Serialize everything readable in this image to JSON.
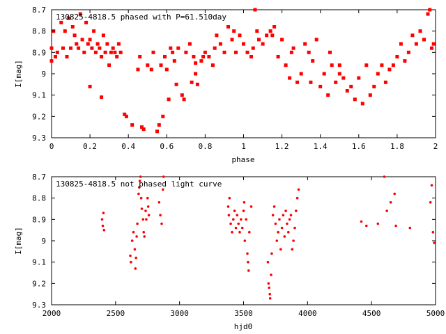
{
  "colors": {
    "points": "#ff0000",
    "axes": "#000000",
    "background": "#ffffff"
  },
  "chart_data": [
    {
      "type": "scatter",
      "title": "130825-4818.5 phased with P=61.510day",
      "xlabel": "phase",
      "ylabel": "I[mag]",
      "xlim": [
        0,
        2
      ],
      "ylim": [
        8.7,
        9.3
      ],
      "y_inverted": true,
      "x_ticks": [
        0,
        0.2,
        0.4,
        0.6,
        0.8,
        1,
        1.2,
        1.4,
        1.6,
        1.8,
        2
      ],
      "x_tick_labels": [
        "0",
        "0.2",
        "0.4",
        "0.6",
        "0.8",
        "1",
        "1.2",
        "1.4",
        "1.6",
        "1.8",
        "2"
      ],
      "y_ticks": [
        8.7,
        8.8,
        8.9,
        9,
        9.1,
        9.2,
        9.3
      ],
      "y_tick_labels": [
        "8.7",
        "8.8",
        "8.9",
        "9",
        "9.1",
        "9.2",
        "9.3"
      ],
      "marker": "filled-square",
      "grid": false,
      "points": [
        [
          0.0,
          8.88
        ],
        [
          0.0,
          8.94
        ],
        [
          0.01,
          8.8
        ],
        [
          0.02,
          8.92
        ],
        [
          0.03,
          8.9
        ],
        [
          0.05,
          8.76
        ],
        [
          0.06,
          8.88
        ],
        [
          0.07,
          8.8
        ],
        [
          0.08,
          8.92
        ],
        [
          0.09,
          8.74
        ],
        [
          0.1,
          8.88
        ],
        [
          0.11,
          8.78
        ],
        [
          0.12,
          8.82
        ],
        [
          0.13,
          8.86
        ],
        [
          0.14,
          8.88
        ],
        [
          0.15,
          8.72
        ],
        [
          0.16,
          8.84
        ],
        [
          0.17,
          8.9
        ],
        [
          0.18,
          8.76
        ],
        [
          0.19,
          8.86
        ],
        [
          0.2,
          8.84
        ],
        [
          0.21,
          8.88
        ],
        [
          0.22,
          8.8
        ],
        [
          0.23,
          8.9
        ],
        [
          0.24,
          8.86
        ],
        [
          0.25,
          8.88
        ],
        [
          0.26,
          8.92
        ],
        [
          0.27,
          8.82
        ],
        [
          0.28,
          8.9
        ],
        [
          0.29,
          8.86
        ],
        [
          0.3,
          8.96
        ],
        [
          0.31,
          8.9
        ],
        [
          0.32,
          8.88
        ],
        [
          0.33,
          8.9
        ],
        [
          0.34,
          8.92
        ],
        [
          0.35,
          8.86
        ],
        [
          0.36,
          8.9
        ],
        [
          0.2,
          9.06
        ],
        [
          0.26,
          9.11
        ],
        [
          0.38,
          9.19
        ],
        [
          0.39,
          9.2
        ],
        [
          0.42,
          9.24
        ],
        [
          0.47,
          9.25
        ],
        [
          0.48,
          9.26
        ],
        [
          0.45,
          8.98
        ],
        [
          0.46,
          8.92
        ],
        [
          0.5,
          8.96
        ],
        [
          0.52,
          8.98
        ],
        [
          0.53,
          8.9
        ],
        [
          0.55,
          9.27
        ],
        [
          0.56,
          9.24
        ],
        [
          0.58,
          9.2
        ],
        [
          0.57,
          8.96
        ],
        [
          0.59,
          8.92
        ],
        [
          0.6,
          8.98
        ],
        [
          0.61,
          9.12
        ],
        [
          0.62,
          8.88
        ],
        [
          0.63,
          8.9
        ],
        [
          0.64,
          8.94
        ],
        [
          0.65,
          9.05
        ],
        [
          0.66,
          8.88
        ],
        [
          0.68,
          9.1
        ],
        [
          0.69,
          9.12
        ],
        [
          0.7,
          8.9
        ],
        [
          0.72,
          8.86
        ],
        [
          0.73,
          9.04
        ],
        [
          0.74,
          8.92
        ],
        [
          0.75,
          9.0
        ],
        [
          0.76,
          9.05
        ],
        [
          0.78,
          8.94
        ],
        [
          0.79,
          8.92
        ],
        [
          0.8,
          8.9
        ],
        [
          0.82,
          8.92
        ],
        [
          0.84,
          8.96
        ],
        [
          0.86,
          8.82
        ],
        [
          0.88,
          8.86
        ],
        [
          0.9,
          8.9
        ],
        [
          0.92,
          8.78
        ],
        [
          0.94,
          8.84
        ],
        [
          0.96,
          8.9
        ],
        [
          0.98,
          8.82
        ],
        [
          1.0,
          8.86
        ],
        [
          1.02,
          8.9
        ],
        [
          1.04,
          8.92
        ],
        [
          1.06,
          8.7
        ],
        [
          1.07,
          8.8
        ],
        [
          1.08,
          8.84
        ],
        [
          1.1,
          8.86
        ],
        [
          1.12,
          8.82
        ],
        [
          1.14,
          8.8
        ],
        [
          1.16,
          8.78
        ],
        [
          1.18,
          8.92
        ],
        [
          1.2,
          8.84
        ],
        [
          1.22,
          8.96
        ],
        [
          1.24,
          9.02
        ],
        [
          1.26,
          8.88
        ],
        [
          1.28,
          9.04
        ],
        [
          1.3,
          9.0
        ],
        [
          1.32,
          8.86
        ],
        [
          1.34,
          8.9
        ],
        [
          1.36,
          8.94
        ],
        [
          1.38,
          8.84
        ],
        [
          1.4,
          9.06
        ],
        [
          1.42,
          9.0
        ],
        [
          1.44,
          9.1
        ],
        [
          1.46,
          8.96
        ],
        [
          1.48,
          9.04
        ],
        [
          1.5,
          8.96
        ],
        [
          1.52,
          9.02
        ],
        [
          1.54,
          9.08
        ],
        [
          1.56,
          9.06
        ],
        [
          1.58,
          9.12
        ],
        [
          1.6,
          9.02
        ],
        [
          1.62,
          9.14
        ],
        [
          1.64,
          8.96
        ],
        [
          1.66,
          9.1
        ],
        [
          1.68,
          9.06
        ],
        [
          1.7,
          9.0
        ],
        [
          1.72,
          8.96
        ],
        [
          1.74,
          9.04
        ],
        [
          1.76,
          8.98
        ],
        [
          1.78,
          8.96
        ],
        [
          1.8,
          8.92
        ],
        [
          1.82,
          8.86
        ],
        [
          1.84,
          8.94
        ],
        [
          1.86,
          8.9
        ],
        [
          1.88,
          8.82
        ],
        [
          1.9,
          8.86
        ],
        [
          1.92,
          8.8
        ],
        [
          1.94,
          8.84
        ],
        [
          1.96,
          8.72
        ],
        [
          1.97,
          8.7
        ],
        [
          1.98,
          8.88
        ],
        [
          1.99,
          8.86
        ],
        [
          1.5,
          9.0
        ],
        [
          1.45,
          8.9
        ],
        [
          1.35,
          9.04
        ],
        [
          1.25,
          8.9
        ],
        [
          1.15,
          8.82
        ],
        [
          1.05,
          8.88
        ],
        [
          0.95,
          8.8
        ],
        [
          0.85,
          8.88
        ],
        [
          0.75,
          8.95
        ]
      ]
    },
    {
      "type": "scatter",
      "title": "130825-4818.5 not phased light curve",
      "xlabel": "hjd0",
      "ylabel": "I[mag]",
      "xlim": [
        2000,
        5000
      ],
      "ylim": [
        8.7,
        9.3
      ],
      "y_inverted": true,
      "x_ticks": [
        2000,
        2500,
        3000,
        3500,
        4000,
        4500,
        5000
      ],
      "x_tick_labels": [
        "2000",
        "2500",
        "3000",
        "3500",
        "4000",
        "4500",
        "5000"
      ],
      "y_ticks": [
        8.7,
        8.8,
        8.9,
        9,
        9.1,
        9.2,
        9.3
      ],
      "y_tick_labels": [
        "8.7",
        "8.8",
        "8.9",
        "9",
        "9.1",
        "9.2",
        "9.3"
      ],
      "marker": "small-dot",
      "grid": false,
      "points": [
        [
          2395,
          8.9
        ],
        [
          2400,
          8.93
        ],
        [
          2405,
          8.87
        ],
        [
          2410,
          8.95
        ],
        [
          2615,
          9.07
        ],
        [
          2620,
          9.1
        ],
        [
          2630,
          9.0
        ],
        [
          2640,
          8.96
        ],
        [
          2650,
          9.04
        ],
        [
          2655,
          9.13
        ],
        [
          2660,
          9.08
        ],
        [
          2665,
          8.98
        ],
        [
          2670,
          8.92
        ],
        [
          2680,
          8.78
        ],
        [
          2685,
          8.75
        ],
        [
          2690,
          8.72
        ],
        [
          2695,
          8.7
        ],
        [
          2700,
          8.8
        ],
        [
          2705,
          8.85
        ],
        [
          2715,
          8.9
        ],
        [
          2720,
          8.96
        ],
        [
          2725,
          8.98
        ],
        [
          2735,
          8.86
        ],
        [
          2740,
          8.9
        ],
        [
          2750,
          8.8
        ],
        [
          2755,
          8.84
        ],
        [
          2760,
          8.88
        ],
        [
          2840,
          8.82
        ],
        [
          2850,
          8.88
        ],
        [
          2860,
          8.92
        ],
        [
          2870,
          8.76
        ],
        [
          2875,
          8.7
        ],
        [
          3380,
          8.84
        ],
        [
          3385,
          8.88
        ],
        [
          3390,
          8.8
        ],
        [
          3400,
          8.92
        ],
        [
          3410,
          8.96
        ],
        [
          3420,
          8.9
        ],
        [
          3430,
          8.86
        ],
        [
          3440,
          8.94
        ],
        [
          3450,
          8.88
        ],
        [
          3460,
          8.92
        ],
        [
          3470,
          8.96
        ],
        [
          3480,
          8.9
        ],
        [
          3490,
          8.94
        ],
        [
          3500,
          8.86
        ],
        [
          3505,
          8.82
        ],
        [
          3510,
          9.0
        ],
        [
          3520,
          8.9
        ],
        [
          3530,
          9.06
        ],
        [
          3535,
          9.1
        ],
        [
          3540,
          9.14
        ],
        [
          3545,
          8.96
        ],
        [
          3560,
          8.84
        ],
        [
          3690,
          9.1
        ],
        [
          3695,
          9.2
        ],
        [
          3700,
          9.22
        ],
        [
          3705,
          9.25
        ],
        [
          3708,
          9.27
        ],
        [
          3715,
          9.16
        ],
        [
          3720,
          9.06
        ],
        [
          3730,
          8.88
        ],
        [
          3740,
          8.84
        ],
        [
          3750,
          8.92
        ],
        [
          3760,
          9.0
        ],
        [
          3770,
          8.96
        ],
        [
          3780,
          8.9
        ],
        [
          3790,
          9.04
        ],
        [
          3800,
          8.94
        ],
        [
          3810,
          8.88
        ],
        [
          3820,
          8.98
        ],
        [
          3830,
          8.86
        ],
        [
          3840,
          8.92
        ],
        [
          3850,
          8.96
        ],
        [
          3860,
          8.9
        ],
        [
          3870,
          8.88
        ],
        [
          3880,
          9.04
        ],
        [
          3890,
          9.0
        ],
        [
          3900,
          8.94
        ],
        [
          3910,
          8.86
        ],
        [
          3920,
          8.8
        ],
        [
          3930,
          8.76
        ],
        [
          4420,
          8.91
        ],
        [
          4460,
          8.93
        ],
        [
          4550,
          8.92
        ],
        [
          4600,
          8.7
        ],
        [
          4620,
          8.86
        ],
        [
          4650,
          8.82
        ],
        [
          4680,
          8.78
        ],
        [
          4690,
          8.93
        ],
        [
          4800,
          8.94
        ],
        [
          4960,
          8.82
        ],
        [
          4970,
          8.74
        ],
        [
          4980,
          8.96
        ],
        [
          4990,
          9.01
        ]
      ]
    }
  ]
}
